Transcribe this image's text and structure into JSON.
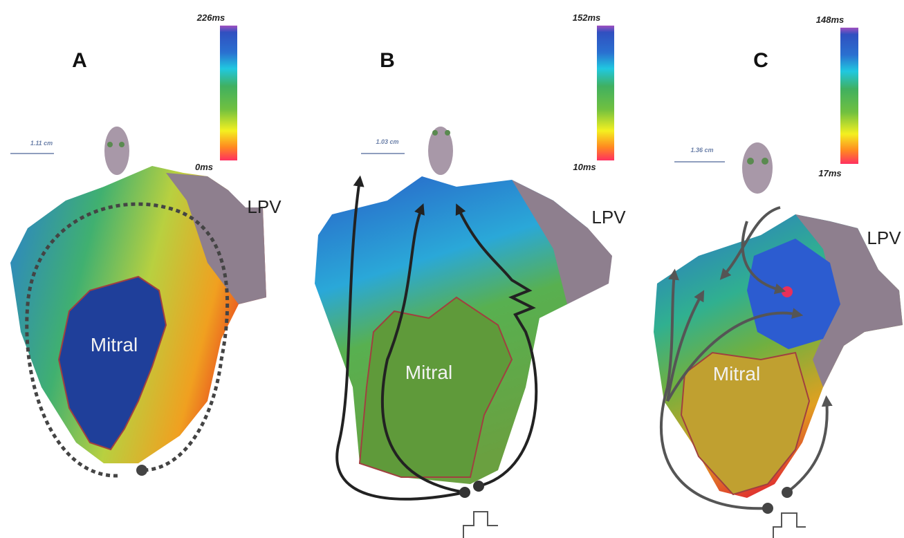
{
  "panels": [
    {
      "label": "A",
      "scale_max": "226ms",
      "scale_min": "0ms",
      "scale_bar": "1.11 cm",
      "lpv": "LPV",
      "mitral": "Mitral"
    },
    {
      "label": "B",
      "scale_max": "152ms",
      "scale_min": "10ms",
      "scale_bar": "1.03 cm",
      "lpv": "LPV",
      "mitral": "Mitral"
    },
    {
      "label": "C",
      "scale_max": "148ms",
      "scale_min": "17ms",
      "scale_bar": "1.36 cm",
      "lpv": "LPV",
      "mitral": "Mitral"
    }
  ]
}
